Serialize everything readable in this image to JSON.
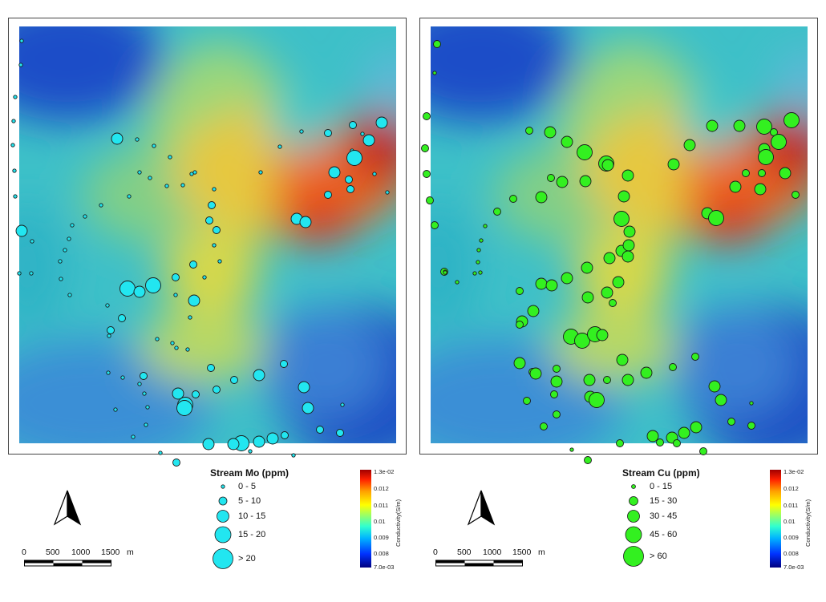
{
  "panels": [
    {
      "legend_title": "Stream Mo (ppm)",
      "classes": [
        "0 - 5",
        "5 - 10",
        "10 - 15",
        "15 - 20",
        "> 20"
      ],
      "symbol_color": "#22e6f0",
      "samples": [
        [
          3,
          18,
          1
        ],
        [
          2,
          48,
          1
        ],
        [
          -5,
          88,
          1
        ],
        [
          -7,
          118,
          1
        ],
        [
          -8,
          148,
          1
        ],
        [
          -6,
          180,
          1
        ],
        [
          -5,
          212,
          1
        ],
        [
          3,
          255,
          3
        ],
        [
          0,
          308,
          1
        ],
        [
          15,
          308,
          1
        ],
        [
          122,
          140,
          3
        ],
        [
          147,
          141,
          1
        ],
        [
          168,
          149,
          1
        ],
        [
          188,
          163,
          1
        ],
        [
          215,
          184,
          1
        ],
        [
          219,
          182,
          1
        ],
        [
          204,
          198,
          1
        ],
        [
          184,
          199,
          1
        ],
        [
          163,
          189,
          1
        ],
        [
          150,
          182,
          1
        ],
        [
          137,
          212,
          1
        ],
        [
          102,
          223,
          1
        ],
        [
          82,
          237,
          1
        ],
        [
          66,
          248,
          1
        ],
        [
          62,
          265,
          1
        ],
        [
          57,
          279,
          1
        ],
        [
          51,
          293,
          1
        ],
        [
          52,
          315,
          1
        ],
        [
          63,
          335,
          1
        ],
        [
          110,
          348,
          1
        ],
        [
          135,
          327,
          4
        ],
        [
          150,
          331,
          3
        ],
        [
          167,
          323,
          4
        ],
        [
          195,
          313,
          2
        ],
        [
          217,
          297,
          2
        ],
        [
          243,
          273,
          1
        ],
        [
          246,
          254,
          2
        ],
        [
          237,
          242,
          2
        ],
        [
          240,
          223,
          2
        ],
        [
          243,
          203,
          1
        ],
        [
          250,
          293,
          1
        ],
        [
          231,
          313,
          1
        ],
        [
          218,
          342,
          3
        ],
        [
          195,
          335,
          1
        ],
        [
          213,
          363,
          1
        ],
        [
          128,
          364,
          2
        ],
        [
          114,
          379,
          2
        ],
        [
          112,
          386,
          1
        ],
        [
          172,
          390,
          1
        ],
        [
          191,
          395,
          1
        ],
        [
          196,
          401,
          1
        ],
        [
          210,
          403,
          1
        ],
        [
          239,
          426,
          2
        ],
        [
          155,
          436,
          2
        ],
        [
          150,
          446,
          1
        ],
        [
          111,
          432,
          1
        ],
        [
          129,
          438,
          1
        ],
        [
          156,
          458,
          1
        ],
        [
          160,
          475,
          1
        ],
        [
          120,
          478,
          1
        ],
        [
          158,
          497,
          1
        ],
        [
          142,
          512,
          1
        ],
        [
          198,
          458,
          3
        ],
        [
          207,
          472,
          4
        ],
        [
          220,
          459,
          2
        ],
        [
          206,
          476,
          4
        ],
        [
          246,
          453,
          2
        ],
        [
          268,
          441,
          2
        ],
        [
          299,
          435,
          3
        ],
        [
          330,
          421,
          2
        ],
        [
          355,
          450,
          3
        ],
        [
          360,
          476,
          3
        ],
        [
          403,
          472,
          1
        ],
        [
          400,
          507,
          2
        ],
        [
          375,
          503,
          2
        ],
        [
          331,
          510,
          2
        ],
        [
          316,
          514,
          3
        ],
        [
          299,
          518,
          3
        ],
        [
          277,
          520,
          4
        ],
        [
          267,
          521,
          3
        ],
        [
          288,
          530,
          1
        ],
        [
          236,
          521,
          3
        ],
        [
          176,
          532,
          1
        ],
        [
          196,
          544,
          2
        ],
        [
          342,
          535,
          1
        ],
        [
          301,
          182,
          1
        ],
        [
          325,
          150,
          1
        ],
        [
          352,
          131,
          1
        ],
        [
          385,
          133,
          2
        ],
        [
          416,
          123,
          2
        ],
        [
          452,
          120,
          3
        ],
        [
          428,
          134,
          1
        ],
        [
          415,
          155,
          1
        ],
        [
          436,
          142,
          3
        ],
        [
          418,
          164,
          4
        ],
        [
          393,
          182,
          3
        ],
        [
          411,
          191,
          2
        ],
        [
          443,
          184,
          1
        ],
        [
          413,
          203,
          2
        ],
        [
          385,
          210,
          2
        ],
        [
          346,
          240,
          3
        ],
        [
          357,
          244,
          3
        ],
        [
          459,
          207,
          1
        ],
        [
          16,
          268,
          1
        ]
      ]
    },
    {
      "legend_title": "Stream Cu (ppm)",
      "classes": [
        "0 - 15",
        "15 - 30",
        "30 - 45",
        "45 - 60",
        "> 60"
      ],
      "symbol_color": "#33f020",
      "samples": [
        [
          8,
          22,
          2
        ],
        [
          5,
          58,
          1
        ],
        [
          -5,
          112,
          2
        ],
        [
          -7,
          152,
          2
        ],
        [
          -5,
          184,
          2
        ],
        [
          -1,
          217,
          2
        ],
        [
          5,
          248,
          2
        ],
        [
          17,
          306,
          2
        ],
        [
          18,
          306,
          1
        ],
        [
          123,
          130,
          2
        ],
        [
          149,
          132,
          3
        ],
        [
          170,
          144,
          3
        ],
        [
          192,
          157,
          4
        ],
        [
          219,
          171,
          4
        ],
        [
          221,
          173,
          3
        ],
        [
          246,
          186,
          3
        ],
        [
          193,
          193,
          3
        ],
        [
          164,
          194,
          3
        ],
        [
          150,
          189,
          2
        ],
        [
          138,
          213,
          3
        ],
        [
          103,
          215,
          2
        ],
        [
          83,
          231,
          2
        ],
        [
          68,
          249,
          1
        ],
        [
          63,
          267,
          1
        ],
        [
          60,
          279,
          1
        ],
        [
          59,
          294,
          1
        ],
        [
          55,
          308,
          1
        ],
        [
          62,
          307,
          1
        ],
        [
          33,
          319,
          1
        ],
        [
          111,
          330,
          2
        ],
        [
          138,
          321,
          3
        ],
        [
          151,
          323,
          3
        ],
        [
          170,
          314,
          3
        ],
        [
          195,
          301,
          3
        ],
        [
          223,
          289,
          3
        ],
        [
          238,
          280,
          3
        ],
        [
          247,
          273,
          3
        ],
        [
          248,
          256,
          3
        ],
        [
          238,
          240,
          4
        ],
        [
          241,
          212,
          3
        ],
        [
          246,
          287,
          3
        ],
        [
          234,
          319,
          3
        ],
        [
          220,
          332,
          3
        ],
        [
          196,
          338,
          3
        ],
        [
          227,
          345,
          2
        ],
        [
          128,
          355,
          3
        ],
        [
          114,
          368,
          3
        ],
        [
          111,
          372,
          2
        ],
        [
          175,
          387,
          4
        ],
        [
          189,
          392,
          4
        ],
        [
          205,
          384,
          4
        ],
        [
          214,
          385,
          3
        ],
        [
          239,
          416,
          3
        ],
        [
          157,
          427,
          2
        ],
        [
          127,
          431,
          2
        ],
        [
          111,
          420,
          3
        ],
        [
          131,
          433,
          3
        ],
        [
          157,
          443,
          3
        ],
        [
          154,
          459,
          2
        ],
        [
          120,
          467,
          2
        ],
        [
          157,
          484,
          2
        ],
        [
          141,
          499,
          2
        ],
        [
          198,
          441,
          3
        ],
        [
          199,
          462,
          3
        ],
        [
          207,
          466,
          4
        ],
        [
          220,
          441,
          2
        ],
        [
          246,
          441,
          3
        ],
        [
          269,
          432,
          3
        ],
        [
          302,
          425,
          2
        ],
        [
          330,
          412,
          2
        ],
        [
          354,
          449,
          3
        ],
        [
          362,
          466,
          3
        ],
        [
          400,
          470,
          1
        ],
        [
          400,
          498,
          2
        ],
        [
          375,
          493,
          2
        ],
        [
          331,
          500,
          3
        ],
        [
          316,
          507,
          3
        ],
        [
          301,
          513,
          3
        ],
        [
          286,
          519,
          2
        ],
        [
          277,
          511,
          3
        ],
        [
          307,
          520,
          2
        ],
        [
          236,
          520,
          2
        ],
        [
          176,
          528,
          1
        ],
        [
          196,
          541,
          2
        ],
        [
          340,
          530,
          2
        ],
        [
          303,
          172,
          3
        ],
        [
          323,
          148,
          3
        ],
        [
          351,
          124,
          3
        ],
        [
          385,
          124,
          3
        ],
        [
          416,
          125,
          4
        ],
        [
          450,
          117,
          4
        ],
        [
          428,
          132,
          2
        ],
        [
          416,
          153,
          3
        ],
        [
          434,
          144,
          4
        ],
        [
          418,
          163,
          4
        ],
        [
          393,
          183,
          2
        ],
        [
          413,
          183,
          2
        ],
        [
          442,
          183,
          3
        ],
        [
          411,
          203,
          3
        ],
        [
          380,
          200,
          3
        ],
        [
          345,
          233,
          3
        ],
        [
          356,
          239,
          4
        ],
        [
          455,
          210,
          2
        ],
        [
          18,
          307,
          1
        ]
      ]
    }
  ],
  "scalebar": {
    "ticks": [
      "0",
      "500",
      "1000",
      "1500"
    ],
    "unit": "m"
  },
  "colorbar": {
    "max": "1.3e-02",
    "ticks": [
      "0.012",
      "0.011",
      "0.01",
      "0.009",
      "0.008"
    ],
    "min": "7.0e-03",
    "title": "Conductivity(S/m)"
  },
  "colors": {
    "symbol_mo": "#22e6f0",
    "symbol_cu": "#33f020",
    "outline": "#1a1a1a"
  },
  "icons": [
    "north-arrow-icon"
  ]
}
